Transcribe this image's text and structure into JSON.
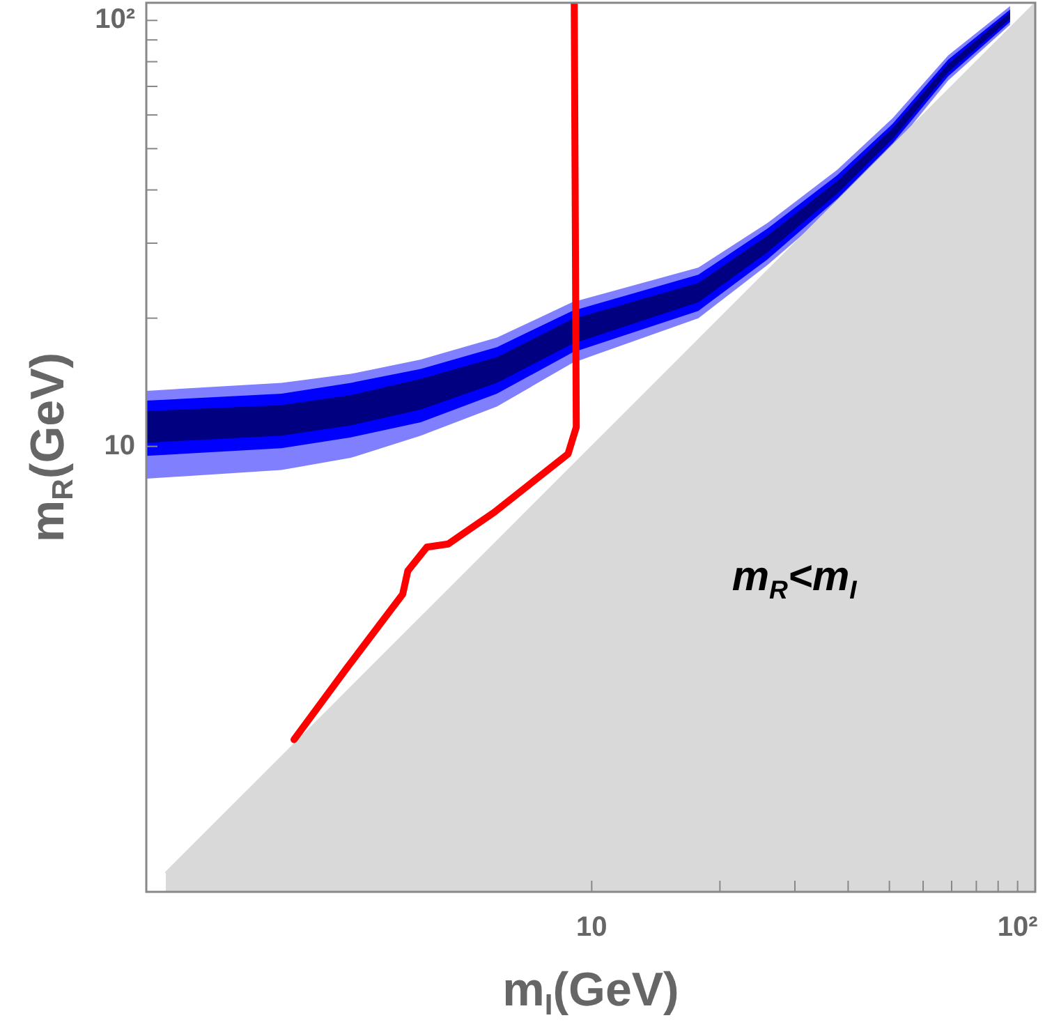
{
  "chart_data": {
    "type": "line",
    "xlabel": "m$_{I}$(GeV)",
    "ylabel": "m$_{R}$(GeV)",
    "log": "xy",
    "grid": false,
    "legend": false,
    "marker": "none",
    "xlim": [
      0.9,
      110
    ],
    "ylim": [
      0.9,
      110
    ],
    "xticks": [
      10,
      {
        "value": 20,
        "label": null
      },
      {
        "value": 30,
        "label": null
      },
      {
        "value": 40,
        "label": null
      },
      {
        "value": 50,
        "label": null
      },
      {
        "value": 60,
        "label": null
      },
      {
        "value": 70,
        "label": null
      },
      {
        "value": 80,
        "label": null
      },
      {
        "value": 90,
        "label": null
      },
      {
        "value": 100,
        "label": "10²"
      }
    ],
    "yticks": [
      10,
      {
        "value": 20,
        "label": null
      },
      {
        "value": 30,
        "label": null
      },
      {
        "value": 40,
        "label": null
      },
      {
        "value": 50,
        "label": null
      },
      {
        "value": 60,
        "label": null
      },
      {
        "value": 70,
        "label": null
      },
      {
        "value": 80,
        "label": null
      },
      {
        "value": 90,
        "label": null
      },
      {
        "value": 100,
        "label": "10²"
      }
    ],
    "series": [
      {
        "type": "area",
        "color": "#d9d9d9",
        "x": [
          1,
          110
        ],
        "values": [
          1,
          110
        ]
      },
      {
        "type": "line",
        "color": "#8080ff",
        "x": [
          0.9,
          1.87,
          2.72,
          3.97,
          5.99,
          9.0,
          17.8,
          25.9,
          37.7,
          50.9,
          68.7,
          96
        ],
        "values": [
          null,
          null,
          null,
          null,
          null,
          null,
          null,
          null,
          null,
          null,
          null,
          null
        ],
        "lower": [
          8.4,
          8.8,
          9.4,
          10.6,
          12.4,
          15.7,
          20.0,
          26.7,
          36.9,
          50.0,
          72.3,
          97.7
        ],
        "upper": [
          13.5,
          14.1,
          14.8,
          16.0,
          18.0,
          21.8,
          26.3,
          33.5,
          44.6,
          59.0,
          82.8,
          108
        ]
      },
      {
        "type": "line",
        "color": "#0000ff",
        "x": [
          0.9,
          1.87,
          2.72,
          3.97,
          5.99,
          9.0,
          17.8,
          25.9,
          37.7,
          50.9,
          68.7,
          96
        ],
        "values": [
          null,
          null,
          null,
          null,
          null,
          null,
          null,
          null,
          null,
          null,
          null,
          null
        ],
        "lower": [
          9.5,
          9.9,
          10.5,
          11.4,
          13.3,
          16.6,
          20.8,
          27.5,
          38.1,
          51.5,
          73.9,
          99.2
        ],
        "upper": [
          12.8,
          13.3,
          14.1,
          15.2,
          17.1,
          20.8,
          25.3,
          32.5,
          43.3,
          57.2,
          80.9,
          106
        ]
      },
      {
        "type": "line",
        "color": "#000080",
        "x": [
          0.9,
          1.87,
          2.72,
          3.97,
          5.99,
          9.0,
          17.8,
          25.9,
          37.7,
          50.9,
          68.7,
          96
        ],
        "values": [
          null,
          null,
          null,
          null,
          null,
          null,
          null,
          null,
          null,
          null,
          null,
          null
        ],
        "lower": [
          10.2,
          10.6,
          11.2,
          12.2,
          14.1,
          17.4,
          21.8,
          28.6,
          39.2,
          52.7,
          75.6,
          100.8
        ],
        "upper": [
          12.1,
          12.5,
          13.2,
          14.4,
          16.2,
          19.9,
          24.2,
          31.3,
          42.0,
          55.9,
          79.1,
          104.6
        ]
      },
      {
        "type": "line",
        "color": "#ff0000",
        "x": [
          2.0,
          2.65,
          3.6,
          3.7,
          4.1,
          4.6,
          5.9,
          8.8,
          9.2,
          9.1
        ],
        "values": [
          2.05,
          3.0,
          4.5,
          5.1,
          5.8,
          5.9,
          7.0,
          9.6,
          11.1,
          110
        ]
      }
    ],
    "annotations": [
      "m$_{R}$<m$_{I}$"
    ]
  }
}
